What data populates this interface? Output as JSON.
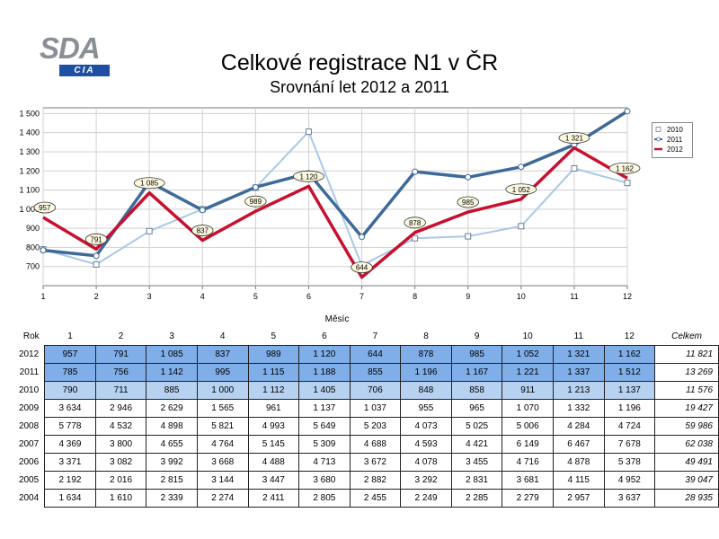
{
  "logo": {
    "main": "SDA",
    "sub": "CIA"
  },
  "chart_data": {
    "type": "line",
    "title": "Celkové registrace N1 v ČR",
    "subtitle": "Srovnání let 2012 a 2011",
    "xlabel": "Měsíc",
    "ylabel": "",
    "x": [
      1,
      2,
      3,
      4,
      5,
      6,
      7,
      8,
      9,
      10,
      11,
      12
    ],
    "x_tick_labels": [
      "1",
      "2",
      "3",
      "4",
      "5",
      "6",
      "7",
      "8",
      "9",
      "10",
      "11",
      "12"
    ],
    "ylim": [
      600,
      1530
    ],
    "y_ticks": [
      700,
      800,
      900,
      1000,
      1100,
      1200,
      1300,
      1400,
      1500
    ],
    "y_tick_labels": [
      "700",
      "800",
      "900",
      "1 000",
      "1 100",
      "1 200",
      "1 300",
      "1 400",
      "1 500"
    ],
    "grid": true,
    "legend_position": "top-right",
    "series": [
      {
        "name": "2010",
        "values": [
          790,
          711,
          885,
          1000,
          1112,
          1405,
          706,
          848,
          858,
          911,
          1213,
          1137
        ],
        "color": "#a9c8e8",
        "marker": "square"
      },
      {
        "name": "2011",
        "values": [
          785,
          756,
          1142,
          995,
          1115,
          1188,
          855,
          1196,
          1167,
          1221,
          1337,
          1512
        ],
        "color": "#3d6a99",
        "marker": "circle"
      },
      {
        "name": "2012",
        "values": [
          957,
          791,
          1085,
          837,
          989,
          1120,
          644,
          878,
          985,
          1052,
          1321,
          1162
        ],
        "color": "#c8102e",
        "marker": "none",
        "data_labels": [
          "957",
          "791",
          "1 085",
          "837",
          "989",
          "1 120",
          "644",
          "878",
          "985",
          "1 052",
          "1 321",
          "1 162"
        ]
      }
    ]
  },
  "table": {
    "header_label": "Rok",
    "months": [
      "1",
      "2",
      "3",
      "4",
      "5",
      "6",
      "7",
      "8",
      "9",
      "10",
      "11",
      "12"
    ],
    "total_label": "Celkem",
    "rows": [
      {
        "year": "2012",
        "values": [
          "957",
          "791",
          "1 085",
          "837",
          "989",
          "1 120",
          "644",
          "878",
          "985",
          "1 052",
          "1 321",
          "1 162"
        ],
        "total": "11 821"
      },
      {
        "year": "2011",
        "values": [
          "785",
          "756",
          "1 142",
          "995",
          "1 115",
          "1 188",
          "855",
          "1 196",
          "1 167",
          "1 221",
          "1 337",
          "1 512"
        ],
        "total": "13 269"
      },
      {
        "year": "2010",
        "values": [
          "790",
          "711",
          "885",
          "1 000",
          "1 112",
          "1 405",
          "706",
          "848",
          "858",
          "911",
          "1 213",
          "1 137"
        ],
        "total": "11 576"
      },
      {
        "year": "2009",
        "values": [
          "3 634",
          "2 946",
          "2 629",
          "1 565",
          "961",
          "1 137",
          "1 037",
          "955",
          "965",
          "1 070",
          "1 332",
          "1 196"
        ],
        "total": "19 427"
      },
      {
        "year": "2008",
        "values": [
          "5 778",
          "4 532",
          "4 898",
          "5 821",
          "4 993",
          "5 649",
          "5 203",
          "4 073",
          "5 025",
          "5 006",
          "4 284",
          "4 724"
        ],
        "total": "59 986"
      },
      {
        "year": "2007",
        "values": [
          "4 369",
          "3 800",
          "4 655",
          "4 764",
          "5 145",
          "5 309",
          "4 688",
          "4 593",
          "4 421",
          "6 149",
          "6 467",
          "7 678"
        ],
        "total": "62 038"
      },
      {
        "year": "2006",
        "values": [
          "3 371",
          "3 082",
          "3 992",
          "3 668",
          "4 488",
          "4 713",
          "3 672",
          "4 078",
          "3 455",
          "4 716",
          "4 878",
          "5 378"
        ],
        "total": "49 491"
      },
      {
        "year": "2005",
        "values": [
          "2 192",
          "2 016",
          "2 815",
          "3 144",
          "3 447",
          "3 680",
          "2 882",
          "3 292",
          "2 831",
          "3 681",
          "4 115",
          "4 952"
        ],
        "total": "39 047"
      },
      {
        "year": "2004",
        "values": [
          "1 634",
          "1 610",
          "2 339",
          "2 274",
          "2 411",
          "2 805",
          "2 455",
          "2 249",
          "2 285",
          "2 279",
          "2 957",
          "3 637"
        ],
        "total": "28 935"
      }
    ]
  }
}
